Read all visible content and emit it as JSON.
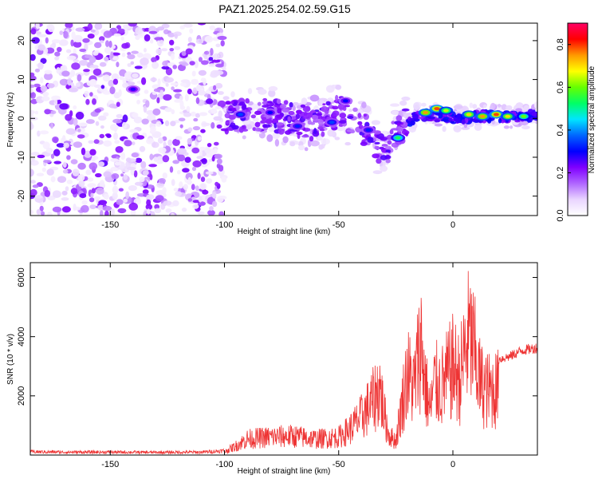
{
  "title": "PAZ1.2025.254.02.59.G15",
  "chart_data": [
    {
      "type": "heatmap",
      "xlabel": "Height of straight line (km)",
      "ylabel": "Frequency (Hz)",
      "xlim": [
        -185,
        37
      ],
      "ylim": [
        -25,
        24.5
      ],
      "xticks": [
        -150,
        -100,
        -50,
        0
      ],
      "yticks": [
        -20,
        -10,
        0,
        10,
        20
      ],
      "colorbar": {
        "label": "Normalized spectral amplitude",
        "range": [
          0,
          0.9
        ],
        "ticks": [
          0.0,
          0.2,
          0.4,
          0.6,
          0.8
        ],
        "colors": [
          "#ffffff",
          "#e9d5ff",
          "#b066ff",
          "#8000ff",
          "#0000ff",
          "#0066ff",
          "#00e5ff",
          "#00ff66",
          "#66ff00",
          "#ffff00",
          "#ff9900",
          "#ff0000",
          "#ff0066"
        ]
      },
      "signal_track": [
        {
          "x": -100,
          "f": 0.5
        },
        {
          "x": -80,
          "f": 1.0
        },
        {
          "x": -60,
          "f": -1.5
        },
        {
          "x": -50,
          "f": 2.0
        },
        {
          "x": -40,
          "f": -2.0
        },
        {
          "x": -30,
          "f": -9.0
        },
        {
          "x": -25,
          "f": -3.0
        },
        {
          "x": -15,
          "f": 1.0
        },
        {
          "x": 0,
          "f": 0.0
        },
        {
          "x": 10,
          "f": 0.5
        },
        {
          "x": 20,
          "f": 0.5
        },
        {
          "x": 37,
          "f": 0.5
        }
      ],
      "features": [
        {
          "x": -140,
          "f": 7.5,
          "amp": 0.28
        },
        {
          "x": -93,
          "f": 1.0,
          "amp": 0.35
        },
        {
          "x": -80,
          "f": 1.5,
          "amp": 0.3
        },
        {
          "x": -68,
          "f": -2.0,
          "amp": 0.32
        },
        {
          "x": -53,
          "f": -1.0,
          "amp": 0.35
        },
        {
          "x": -47,
          "f": 4.5,
          "amp": 0.3
        },
        {
          "x": -37,
          "f": -3.0,
          "amp": 0.32
        },
        {
          "x": -24,
          "f": -5.0,
          "amp": 0.55
        },
        {
          "x": -12,
          "f": 1.5,
          "amp": 0.75
        },
        {
          "x": -7,
          "f": 2.5,
          "amp": 0.8
        },
        {
          "x": -3,
          "f": 2.0,
          "amp": 0.65
        },
        {
          "x": 7,
          "f": 1.0,
          "amp": 0.7
        },
        {
          "x": 13,
          "f": 0.5,
          "amp": 0.75
        },
        {
          "x": 19,
          "f": 1.0,
          "amp": 0.8
        },
        {
          "x": 24,
          "f": 0.5,
          "amp": 0.7
        },
        {
          "x": 31,
          "f": 0.5,
          "amp": 0.6
        }
      ]
    },
    {
      "type": "line",
      "xlabel": "Height of straight line (km)",
      "ylabel": "SNR (10 * v/v)",
      "xlim": [
        -185,
        37
      ],
      "ylim": [
        0,
        6500
      ],
      "xticks": [
        -150,
        -100,
        -50,
        0
      ],
      "yticks": [
        2000,
        4000,
        6000
      ],
      "color": "#ee3333",
      "series": [
        {
          "x": [
            -185,
            -170,
            -150,
            -130,
            -110,
            -100,
            -95,
            -90,
            -80,
            -70,
            -60,
            -50,
            -45,
            -40,
            -35,
            -32,
            -30,
            -28,
            -25,
            -20,
            -17,
            -14,
            -12,
            -10,
            -8,
            -5,
            0,
            3,
            5,
            7,
            9,
            12,
            15,
            20,
            25,
            30,
            37
          ],
          "y": [
            120,
            110,
            110,
            100,
            110,
            160,
            450,
            800,
            900,
            950,
            800,
            900,
            1300,
            1900,
            2700,
            3400,
            2000,
            1000,
            700,
            4100,
            3400,
            5700,
            3500,
            2200,
            3600,
            3400,
            4400,
            3800,
            5000,
            5900,
            5300,
            3600,
            3200,
            3300,
            3400,
            3600,
            3700
          ]
        }
      ]
    }
  ]
}
